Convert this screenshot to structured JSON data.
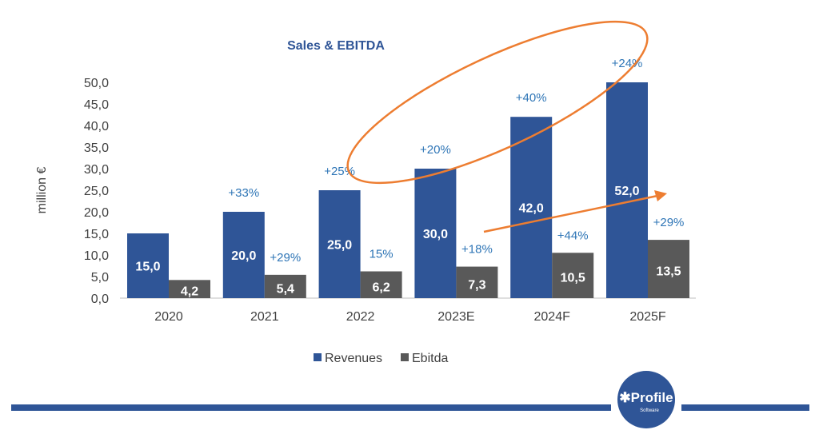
{
  "chart_data": {
    "type": "bar",
    "title": "Sales & EBITDA",
    "ylabel": "million €",
    "xlabel": "",
    "ylim": [
      0,
      50
    ],
    "yticks": [
      "0,0",
      "5,0",
      "10,0",
      "15,0",
      "20,0",
      "25,0",
      "30,0",
      "35,0",
      "40,0",
      "45,0",
      "50,0"
    ],
    "categories": [
      "2020",
      "2021",
      "2022",
      "2023E",
      "2024F",
      "2025F"
    ],
    "series": [
      {
        "name": "Revenues",
        "color": "#2f5597",
        "values": [
          15.0,
          20.0,
          25.0,
          30.0,
          42.0,
          52.0
        ],
        "labels": [
          "15,0",
          "20,0",
          "25,0",
          "30,0",
          "42,0",
          "52,0"
        ],
        "growth": [
          "",
          "+33%",
          "+25%",
          "+20%",
          "+40%",
          "+24%"
        ]
      },
      {
        "name": "Ebitda",
        "color": "#595959",
        "values": [
          4.2,
          5.4,
          6.2,
          7.3,
          10.5,
          13.5
        ],
        "labels": [
          "4,2",
          "5,4",
          "6,2",
          "7,3",
          "10,5",
          "13,5"
        ],
        "growth": [
          "",
          "+29%",
          "15%",
          "+18%",
          "+44%",
          "+29%"
        ]
      }
    ],
    "grid": false,
    "legend": "bottom",
    "annotations": {
      "ellipse_color": "#ed7d31",
      "arrow_color": "#ed7d31",
      "growth_color": "#2e75b6"
    }
  },
  "footer": {
    "logo": "Profile",
    "logo_sub": "Software",
    "bar_color": "#2f5597"
  }
}
